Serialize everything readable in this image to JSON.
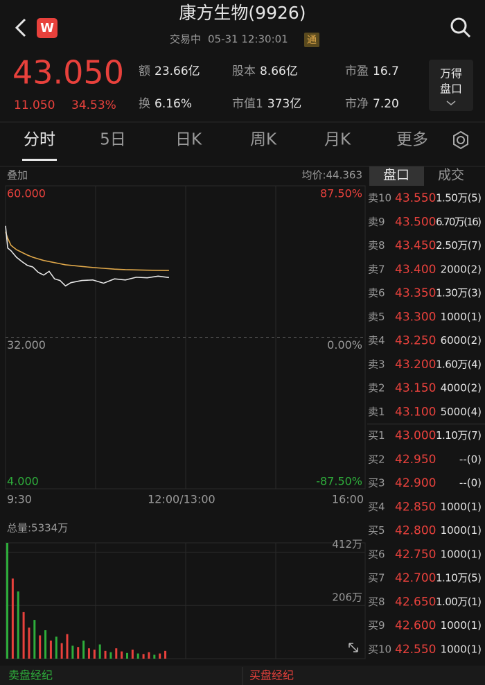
{
  "header": {
    "title": "康方生物(9926)",
    "status": "交易中",
    "datetime": "05-31 12:30:01",
    "badge": "通"
  },
  "quote": {
    "price": "43.050",
    "change": "11.050",
    "change_pct": "34.53%",
    "stats": [
      {
        "label": "额",
        "value": "23.66亿"
      },
      {
        "label": "股本",
        "value": "8.66亿"
      },
      {
        "label": "市盈",
        "value": "16.7"
      },
      {
        "label": "换",
        "value": "6.16%"
      },
      {
        "label": "市值1",
        "value": "373亿"
      },
      {
        "label": "市净",
        "value": "7.20"
      }
    ],
    "button": [
      "万得",
      "盘口"
    ]
  },
  "tabs": [
    "分时",
    "5日",
    "日K",
    "周K",
    "月K",
    "更多"
  ],
  "chart_header": {
    "overlay": "叠加",
    "avg_price": "均价:44.363"
  },
  "book_tabs": [
    "盘口",
    "成交"
  ],
  "volume_header": "总量:5334万",
  "chart_data": [
    {
      "type": "line",
      "x": [
        0,
        2,
        5,
        10,
        15,
        20,
        25,
        30,
        35,
        40,
        45,
        50,
        55,
        60,
        70,
        80,
        90,
        100,
        110,
        120,
        130,
        140,
        150
      ],
      "xlim": [
        0,
        330
      ],
      "xticks": [
        {
          "value": 0,
          "label": "9:30"
        },
        {
          "value": 150,
          "label": "12:00/13:00"
        },
        {
          "value": 330,
          "label": "16:00"
        }
      ],
      "ylim": [
        4,
        60
      ],
      "yticks": [
        {
          "value": 4,
          "label": "4.000"
        },
        {
          "value": 32,
          "label": "32.000"
        },
        {
          "value": 60,
          "label": "60.000"
        }
      ],
      "y2lim": [
        -87.5,
        87.5
      ],
      "y2ticks": [
        {
          "value": -87.5,
          "label": "-87.50%"
        },
        {
          "value": 0,
          "label": "0.00%"
        },
        {
          "value": 87.5,
          "label": "87.50%"
        }
      ],
      "series": [
        {
          "name": "价格",
          "color": "#e6e6e6",
          "values": [
            52.6,
            48.5,
            48.0,
            46.8,
            46.0,
            45.3,
            45.0,
            44.0,
            43.5,
            44.2,
            42.8,
            42.5,
            41.5,
            42.1,
            42.5,
            42.6,
            42.0,
            42.8,
            42.6,
            43.1,
            43.0,
            43.3,
            43.05
          ]
        },
        {
          "name": "均价",
          "color": "#e0a84a",
          "values": [
            51.5,
            50.3,
            49.0,
            48.2,
            47.7,
            47.2,
            46.8,
            46.5,
            46.2,
            46.0,
            45.8,
            45.6,
            45.4,
            45.3,
            45.1,
            44.9,
            44.75,
            44.6,
            44.5,
            44.45,
            44.41,
            44.38,
            44.36
          ]
        }
      ]
    },
    {
      "type": "bar",
      "x": [
        0,
        5,
        10,
        15,
        20,
        25,
        30,
        35,
        40,
        45,
        50,
        55,
        60,
        65,
        70,
        75,
        80,
        85,
        90,
        95,
        100,
        105,
        110,
        115,
        120,
        125,
        130,
        135,
        140,
        145
      ],
      "xlim": [
        0,
        330
      ],
      "ylim": [
        0,
        448
      ],
      "yticks": [
        {
          "value": 206,
          "label": "206万"
        },
        {
          "value": 412,
          "label": "412万"
        }
      ],
      "values": [
        448,
        310,
        260,
        180,
        120,
        150,
        90,
        110,
        70,
        85,
        60,
        95,
        50,
        45,
        70,
        40,
        35,
        55,
        30,
        25,
        40,
        28,
        22,
        35,
        20,
        18,
        25,
        15,
        20,
        30
      ],
      "colors": [
        "#2ead3b",
        "#e8413c",
        "#2ead3b",
        "#e8413c",
        "#e8413c",
        "#2ead3b",
        "#e8413c",
        "#2ead3b",
        "#e8413c",
        "#2ead3b",
        "#e8413c",
        "#e8413c",
        "#2ead3b",
        "#e8413c",
        "#2ead3b",
        "#e8413c",
        "#e8413c",
        "#2ead3b",
        "#e8413c",
        "#2ead3b",
        "#e8413c",
        "#e8413c",
        "#2ead3b",
        "#e8413c",
        "#2ead3b",
        "#e8413c",
        "#e8413c",
        "#2ead3b",
        "#e8413c",
        "#e8413c"
      ]
    }
  ],
  "order_book": {
    "sells": [
      [
        "卖10",
        "43.550",
        "1.50万(5)"
      ],
      [
        "卖9",
        "43.500",
        "6.70万(16)"
      ],
      [
        "卖8",
        "43.450",
        "2.50万(7)"
      ],
      [
        "卖7",
        "43.400",
        "2000(2)"
      ],
      [
        "卖6",
        "43.350",
        "1.30万(3)"
      ],
      [
        "卖5",
        "43.300",
        "1000(1)"
      ],
      [
        "卖4",
        "43.250",
        "6000(2)"
      ],
      [
        "卖3",
        "43.200",
        "1.60万(4)"
      ],
      [
        "卖2",
        "43.150",
        "4000(2)"
      ],
      [
        "卖1",
        "43.100",
        "5000(4)"
      ]
    ],
    "buys": [
      [
        "买1",
        "43.000",
        "1.10万(7)"
      ],
      [
        "买2",
        "42.950",
        "--(0)"
      ],
      [
        "买3",
        "42.900",
        "--(0)"
      ],
      [
        "买4",
        "42.850",
        "1000(1)"
      ],
      [
        "买5",
        "42.800",
        "1000(1)"
      ],
      [
        "买6",
        "42.750",
        "1000(1)"
      ],
      [
        "买7",
        "42.700",
        "1.10万(5)"
      ],
      [
        "买8",
        "42.650",
        "1.00万(1)"
      ],
      [
        "买9",
        "42.600",
        "1000(1)"
      ],
      [
        "买10",
        "42.550",
        "1000(1)"
      ]
    ]
  },
  "footer": [
    "卖盘经纪",
    "买盘经纪"
  ]
}
